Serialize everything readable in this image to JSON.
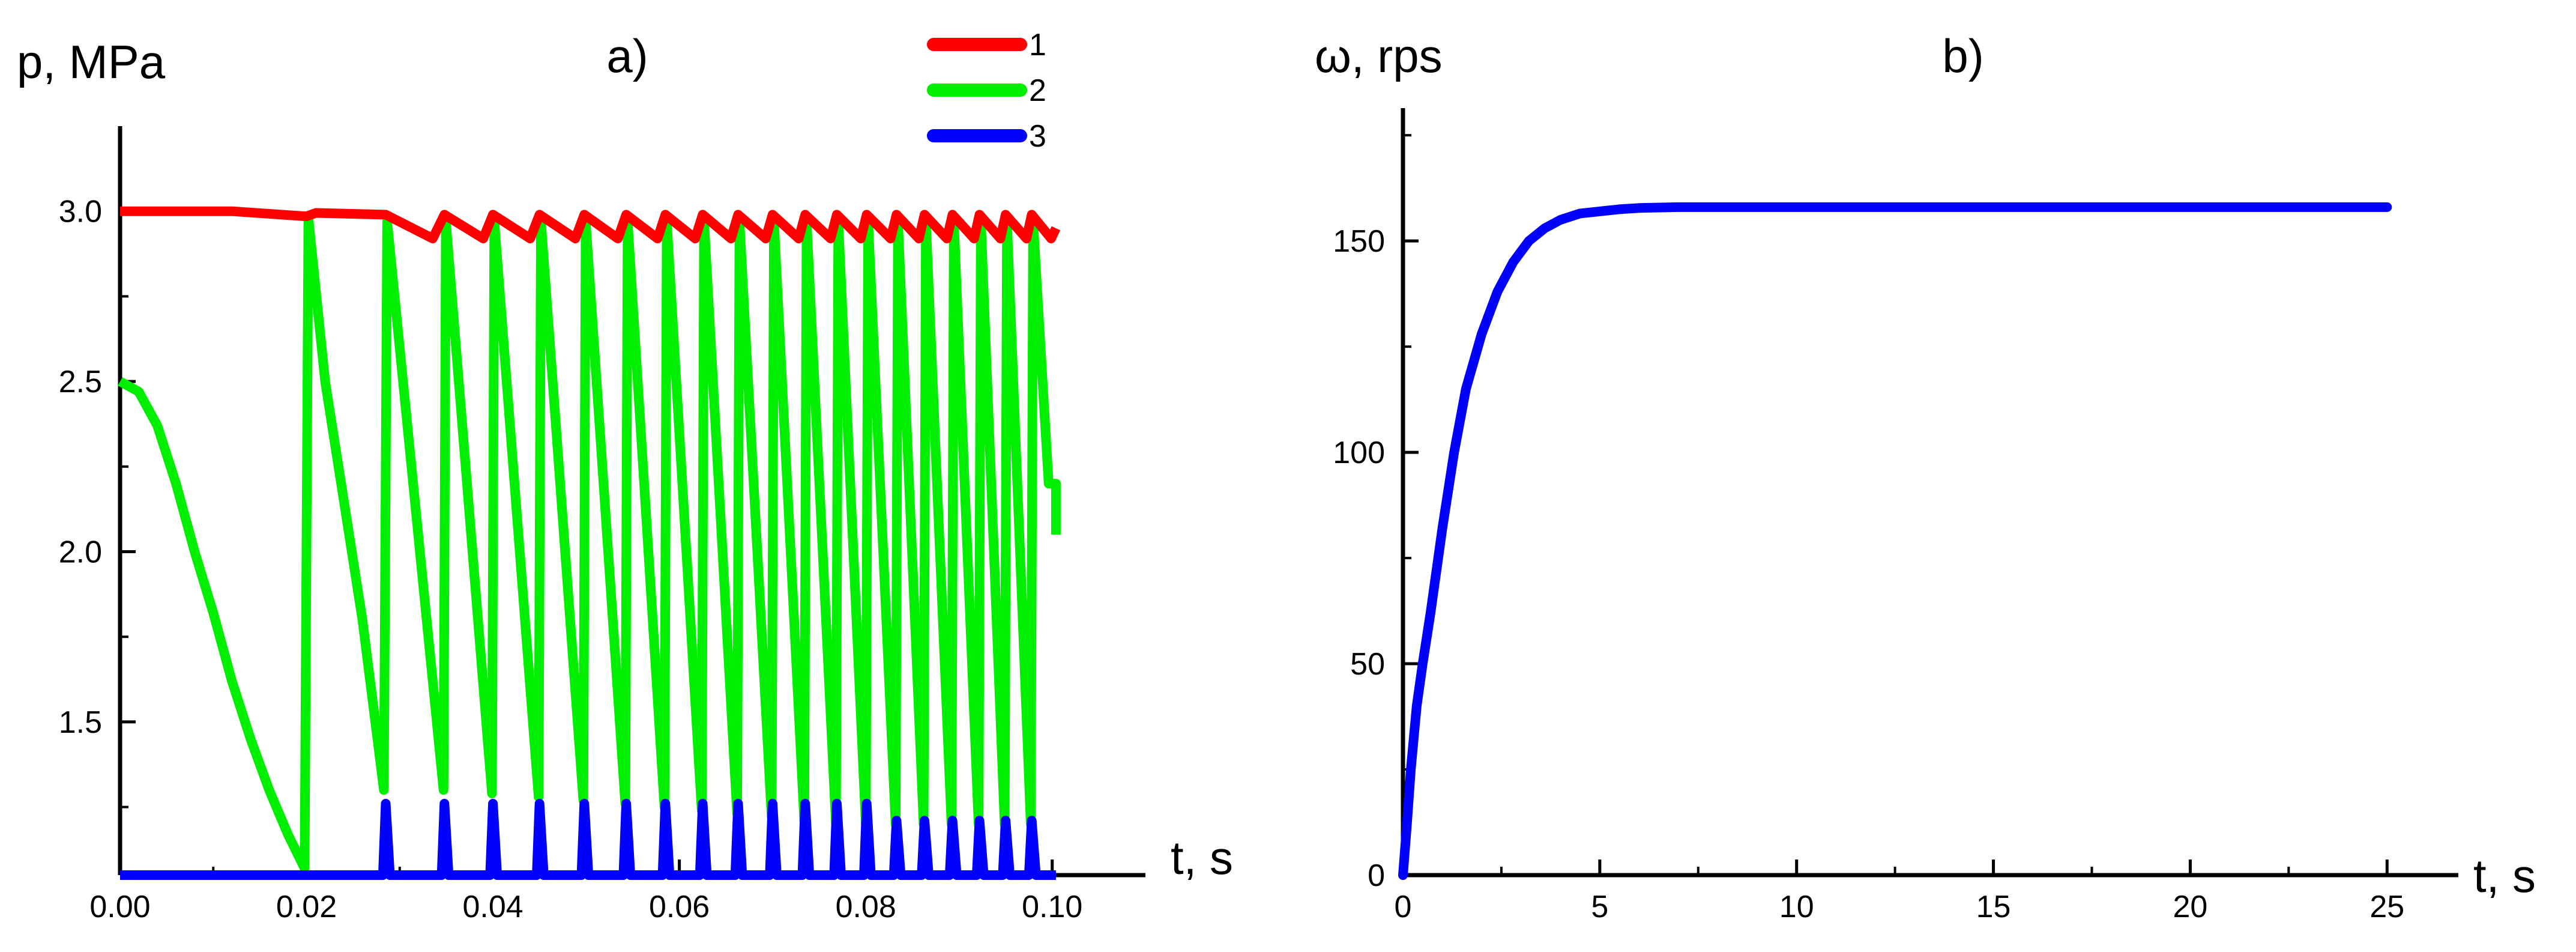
{
  "chart_data": [
    {
      "type": "line",
      "panel_label": "a)",
      "xlabel": "t, s",
      "ylabel": "p, MPa",
      "xlim": [
        0,
        0.11
      ],
      "ylim": [
        1.05,
        3.25
      ],
      "x_ticks": [
        0,
        0.02,
        0.04,
        0.06,
        0.08,
        0.1
      ],
      "x_tick_labels": [
        "0.00",
        "0.02",
        "0.04",
        "0.06",
        "0.08",
        "0.10"
      ],
      "y_ticks": [
        1.5,
        2.0,
        2.5,
        3.0
      ],
      "y_tick_labels": [
        "1.5",
        "2.0",
        "2.5",
        "3.0"
      ],
      "grid": false,
      "legend_position": "top-right",
      "cycle_starts": [
        0.0285,
        0.0348,
        0.04,
        0.045,
        0.0498,
        0.0543,
        0.0585,
        0.0625,
        0.0663,
        0.07,
        0.0735,
        0.0769,
        0.0801,
        0.0833,
        0.0863,
        0.0893,
        0.0922,
        0.095,
        0.0978
      ],
      "series": [
        {
          "name": "1",
          "color": "#ff0000",
          "description": "supply pressure, slight sawtooth near 3.0 MPa",
          "points": [
            [
              0,
              3.0
            ],
            [
              0.012,
              3.0
            ],
            [
              0.02,
              2.985
            ],
            [
              0.021,
              2.995
            ]
          ],
          "cycle_low": 2.92,
          "cycle_high": 2.99
        },
        {
          "name": "2",
          "color": "#00ee00",
          "description": "chamber pressure, decays from 2.5 then periodic spikes to ~2.98 MPa",
          "points": [
            [
              0,
              2.5
            ],
            [
              0.002,
              2.47
            ],
            [
              0.004,
              2.37
            ],
            [
              0.006,
              2.2
            ],
            [
              0.008,
              2.0
            ],
            [
              0.01,
              1.82
            ],
            [
              0.012,
              1.62
            ],
            [
              0.014,
              1.45
            ],
            [
              0.016,
              1.3
            ],
            [
              0.018,
              1.17
            ],
            [
              0.0198,
              1.07
            ],
            [
              0.0202,
              2.98
            ],
            [
              0.022,
              2.5
            ],
            [
              0.024,
              2.15
            ],
            [
              0.026,
              1.8
            ],
            [
              0.0283,
              1.3
            ]
          ],
          "cycle_high": 2.97,
          "cycle_low": 1.3,
          "end_value": 2.05
        },
        {
          "name": "3",
          "color": "#0000ff",
          "description": "outlet pressure, base level with short pulses up to ~1.25 MPa",
          "base": 1.05,
          "pulse_high": 1.26,
          "pulse_high_late": 1.21
        }
      ]
    },
    {
      "type": "line",
      "panel_label": "b)",
      "xlabel": "t, s",
      "ylabel": "ω, rps",
      "xlim": [
        0,
        28
      ],
      "ylim": [
        0,
        180
      ],
      "x_ticks": [
        0,
        5,
        10,
        15,
        20,
        25
      ],
      "x_tick_labels": [
        "0",
        "5",
        "10",
        "15",
        "20",
        "25"
      ],
      "y_ticks": [
        0,
        50,
        100,
        150
      ],
      "y_tick_labels": [
        "0",
        "50",
        "100",
        "150"
      ],
      "grid": false,
      "series": [
        {
          "name": "",
          "color": "#0000ff",
          "x": [
            0,
            0.1,
            0.2,
            0.35,
            0.5,
            0.7,
            1.0,
            1.3,
            1.6,
            2.0,
            2.4,
            2.8,
            3.2,
            3.6,
            4.0,
            4.5,
            5.0,
            5.5,
            6.0,
            7.0,
            8.0,
            10.0,
            15.0,
            20.0,
            25.0
          ],
          "y": [
            0,
            12,
            25,
            40,
            50,
            62,
            82,
            100,
            115,
            128,
            138,
            145,
            150,
            153,
            155,
            156.5,
            157,
            157.5,
            157.8,
            158,
            158,
            158,
            158,
            158,
            158
          ]
        }
      ]
    }
  ]
}
